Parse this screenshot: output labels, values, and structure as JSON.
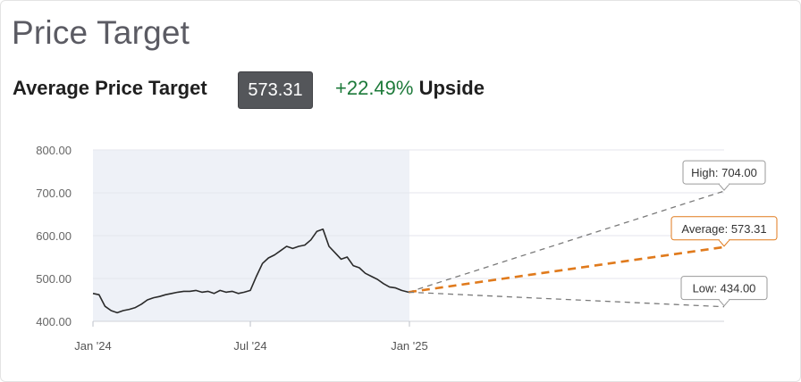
{
  "page": {
    "title": "Price Target"
  },
  "summary": {
    "label": "Average Price Target",
    "value": "573.31",
    "upside_pct": "+22.49%",
    "upside_word": "Upside"
  },
  "colors": {
    "price_line": "#2a2a2a",
    "history_band": "#eef1f7",
    "average_line": "#e07a1c",
    "range_lines": "#7a7a7a",
    "upside_green": "#1d7a3a",
    "value_badge": "#54565a"
  },
  "chart_data": {
    "type": "line",
    "title": "",
    "xlabel": "",
    "ylabel": "",
    "ylim": [
      400,
      800
    ],
    "y_ticks": [
      400,
      500,
      600,
      700,
      800
    ],
    "y_tick_labels": [
      "400.00",
      "500.00",
      "600.00",
      "700.00",
      "800.00"
    ],
    "x_range": [
      "2024-01-01",
      "2025-12-31"
    ],
    "x_ticks": [
      {
        "date": "2024-01-01",
        "label": "Jan '24"
      },
      {
        "date": "2024-07-01",
        "label": "Jul '24"
      },
      {
        "date": "2025-01-01",
        "label": "Jan '25"
      }
    ],
    "grid": true,
    "history_band": [
      "2024-01-01",
      "2025-01-01"
    ],
    "series": [
      {
        "x": [
          "2024-01-01",
          "2024-01-08",
          "2024-01-15",
          "2024-01-22",
          "2024-01-29",
          "2024-02-05",
          "2024-02-12",
          "2024-02-19",
          "2024-02-26",
          "2024-03-04",
          "2024-03-11",
          "2024-03-18",
          "2024-03-25",
          "2024-04-01",
          "2024-04-08",
          "2024-04-15",
          "2024-04-22",
          "2024-04-29",
          "2024-05-06",
          "2024-05-13",
          "2024-05-20",
          "2024-05-27",
          "2024-06-03",
          "2024-06-10",
          "2024-06-17",
          "2024-06-24",
          "2024-07-01",
          "2024-07-08",
          "2024-07-15",
          "2024-07-22",
          "2024-07-29",
          "2024-08-05",
          "2024-08-12",
          "2024-08-19",
          "2024-08-26",
          "2024-09-02",
          "2024-09-09",
          "2024-09-16",
          "2024-09-23",
          "2024-09-30",
          "2024-10-07",
          "2024-10-14",
          "2024-10-21",
          "2024-10-28",
          "2024-11-04",
          "2024-11-11",
          "2024-11-18",
          "2024-11-25",
          "2024-12-02",
          "2024-12-09",
          "2024-12-16",
          "2024-12-23",
          "2024-12-31"
        ],
        "values": [
          465,
          462,
          435,
          425,
          420,
          425,
          428,
          432,
          440,
          450,
          455,
          458,
          462,
          465,
          468,
          470,
          470,
          472,
          468,
          470,
          465,
          472,
          468,
          470,
          465,
          468,
          472,
          505,
          535,
          548,
          555,
          565,
          575,
          570,
          575,
          578,
          590,
          610,
          615,
          575,
          560,
          545,
          550,
          530,
          525,
          512,
          505,
          498,
          488,
          480,
          478,
          472,
          468
        ]
      },
      {
        "name": "High",
        "x": [
          "2024-12-31",
          "2025-12-31"
        ],
        "values": [
          468,
          704.0
        ]
      },
      {
        "name": "Average",
        "x": [
          "2024-12-31",
          "2025-12-31"
        ],
        "values": [
          468,
          573.31
        ]
      },
      {
        "name": "Low",
        "x": [
          "2024-12-31",
          "2025-12-31"
        ],
        "values": [
          468,
          434.0
        ]
      }
    ],
    "annotations": [
      {
        "series": "High",
        "label": "High: 704.00"
      },
      {
        "series": "Average",
        "label": "Average: 573.31"
      },
      {
        "series": "Low",
        "label": "Low: 434.00"
      }
    ]
  }
}
